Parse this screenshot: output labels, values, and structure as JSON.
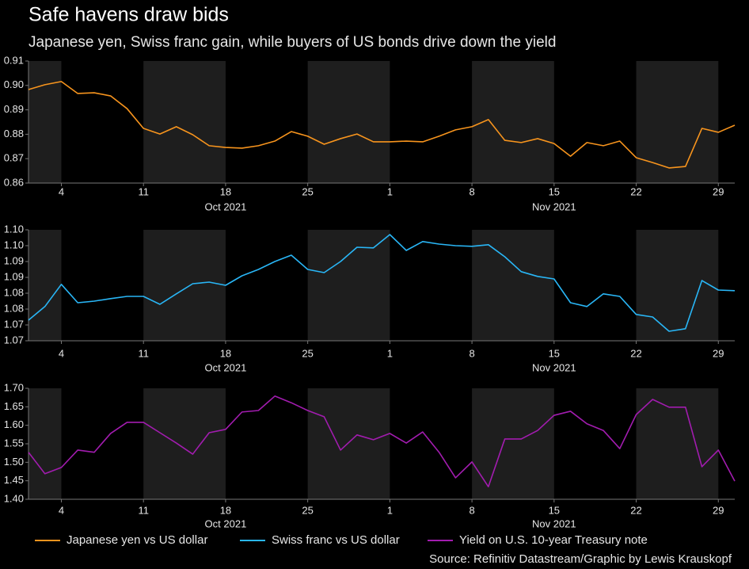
{
  "title": "Safe havens draw bids",
  "subtitle": "Japanese yen, Swiss franc gain, while buyers of US bonds drive down the yield",
  "source": "Source: Refinitiv Datastream/Graphic by Lewis Krauskopf",
  "chart_data": [
    {
      "type": "line",
      "x": [
        "2021-09-30",
        "2021-10-01",
        "2021-10-04",
        "2021-10-05",
        "2021-10-06",
        "2021-10-07",
        "2021-10-08",
        "2021-10-11",
        "2021-10-12",
        "2021-10-13",
        "2021-10-14",
        "2021-10-15",
        "2021-10-18",
        "2021-10-19",
        "2021-10-20",
        "2021-10-21",
        "2021-10-22",
        "2021-10-25",
        "2021-10-26",
        "2021-10-27",
        "2021-10-28",
        "2021-10-29",
        "2021-11-01",
        "2021-11-02",
        "2021-11-03",
        "2021-11-04",
        "2021-11-05",
        "2021-11-08",
        "2021-11-09",
        "2021-11-10",
        "2021-11-11",
        "2021-11-12",
        "2021-11-15",
        "2021-11-16",
        "2021-11-17",
        "2021-11-18",
        "2021-11-19",
        "2021-11-22",
        "2021-11-23",
        "2021-11-24",
        "2021-11-25",
        "2021-11-26",
        "2021-11-29",
        "2021-11-30"
      ],
      "xlim": [
        "2021-09-30",
        "2021-11-30"
      ],
      "xticks": [
        {
          "value": "2021-10-04",
          "label": "4"
        },
        {
          "value": "2021-10-11",
          "label": "11"
        },
        {
          "value": "2021-10-18",
          "label": "18"
        },
        {
          "value": "2021-10-25",
          "label": "25"
        },
        {
          "value": "2021-11-01",
          "label": "1"
        },
        {
          "value": "2021-11-08",
          "label": "8"
        },
        {
          "value": "2021-11-15",
          "label": "15"
        },
        {
          "value": "2021-11-22",
          "label": "22"
        },
        {
          "value": "2021-11-29",
          "label": "29"
        }
      ],
      "x_group_labels": [
        {
          "value": "2021-10-18",
          "label": "Oct 2021"
        },
        {
          "value": "2021-11-15",
          "label": "Nov 2021"
        }
      ],
      "ylim": [
        0.86,
        0.91
      ],
      "yticks": [
        0.86,
        0.87,
        0.88,
        0.89,
        {
          "value": 0.9,
          "label": "0.90"
        },
        0.91
      ],
      "series": [
        {
          "name": "Japanese yen vs US dollar",
          "color": "#f7941d",
          "values": [
            0.8983,
            0.9003,
            0.9016,
            0.8967,
            0.897,
            0.8957,
            0.8905,
            0.8824,
            0.8801,
            0.8831,
            0.8798,
            0.8753,
            0.8746,
            0.8743,
            0.8753,
            0.8772,
            0.8811,
            0.8792,
            0.8759,
            0.8782,
            0.8801,
            0.8769,
            0.8769,
            0.8772,
            0.8769,
            0.8792,
            0.8818,
            0.8831,
            0.886,
            0.8775,
            0.8766,
            0.8782,
            0.8762,
            0.871,
            0.8766,
            0.8753,
            0.8772,
            0.8704,
            0.8684,
            0.8662,
            0.8668,
            0.8824,
            0.8808,
            0.8837
          ]
        }
      ]
    },
    {
      "type": "line",
      "x": [
        "2021-09-30",
        "2021-10-01",
        "2021-10-04",
        "2021-10-05",
        "2021-10-06",
        "2021-10-07",
        "2021-10-08",
        "2021-10-11",
        "2021-10-12",
        "2021-10-13",
        "2021-10-14",
        "2021-10-15",
        "2021-10-18",
        "2021-10-19",
        "2021-10-20",
        "2021-10-21",
        "2021-10-22",
        "2021-10-25",
        "2021-10-26",
        "2021-10-27",
        "2021-10-28",
        "2021-10-29",
        "2021-11-01",
        "2021-11-02",
        "2021-11-03",
        "2021-11-04",
        "2021-11-05",
        "2021-11-08",
        "2021-11-09",
        "2021-11-10",
        "2021-11-11",
        "2021-11-12",
        "2021-11-15",
        "2021-11-16",
        "2021-11-17",
        "2021-11-18",
        "2021-11-19",
        "2021-11-22",
        "2021-11-23",
        "2021-11-24",
        "2021-11-25",
        "2021-11-26",
        "2021-11-29",
        "2021-11-30"
      ],
      "xlim": [
        "2021-09-30",
        "2021-11-30"
      ],
      "xticks": [
        {
          "value": "2021-10-04",
          "label": "4"
        },
        {
          "value": "2021-10-11",
          "label": "11"
        },
        {
          "value": "2021-10-18",
          "label": "18"
        },
        {
          "value": "2021-10-25",
          "label": "25"
        },
        {
          "value": "2021-11-01",
          "label": "1"
        },
        {
          "value": "2021-11-08",
          "label": "8"
        },
        {
          "value": "2021-11-15",
          "label": "15"
        },
        {
          "value": "2021-11-22",
          "label": "22"
        },
        {
          "value": "2021-11-29",
          "label": "29"
        }
      ],
      "x_group_labels": [
        {
          "value": "2021-10-18",
          "label": "Oct 2021"
        },
        {
          "value": "2021-11-15",
          "label": "Nov 2021"
        }
      ],
      "ylim": [
        1.065,
        1.1
      ],
      "yticks": [
        {
          "value": 1.065,
          "label": "1.07"
        },
        1.07,
        {
          "value": 1.075,
          "label": "1.08"
        },
        1.08,
        {
          "value": 1.085,
          "label": "1.09"
        },
        1.09,
        {
          "value": 1.095,
          "label": "1.10"
        },
        {
          "value": 1.1,
          "label": "1.10"
        }
      ],
      "series": [
        {
          "name": "Swiss franc vs US dollar",
          "color": "#29b6f6",
          "values": [
            1.0715,
            1.0758,
            1.0828,
            1.077,
            1.0775,
            1.0783,
            1.079,
            1.079,
            1.0765,
            1.0798,
            1.083,
            1.0835,
            1.0825,
            1.0855,
            1.0875,
            1.09,
            1.092,
            1.0875,
            1.0865,
            1.09,
            1.0945,
            1.0943,
            1.0985,
            1.0935,
            1.0963,
            1.0955,
            1.095,
            1.0948,
            1.0953,
            1.0915,
            1.0868,
            1.0853,
            1.0845,
            1.077,
            1.0758,
            1.0798,
            1.079,
            1.0733,
            1.0725,
            1.068,
            1.0688,
            1.084,
            1.081,
            1.0808
          ]
        }
      ]
    },
    {
      "type": "line",
      "x": [
        "2021-09-30",
        "2021-10-01",
        "2021-10-04",
        "2021-10-05",
        "2021-10-06",
        "2021-10-07",
        "2021-10-08",
        "2021-10-11",
        "2021-10-12",
        "2021-10-13",
        "2021-10-14",
        "2021-10-15",
        "2021-10-18",
        "2021-10-19",
        "2021-10-20",
        "2021-10-21",
        "2021-10-22",
        "2021-10-25",
        "2021-10-26",
        "2021-10-27",
        "2021-10-28",
        "2021-10-29",
        "2021-11-01",
        "2021-11-02",
        "2021-11-03",
        "2021-11-04",
        "2021-11-05",
        "2021-11-08",
        "2021-11-09",
        "2021-11-10",
        "2021-11-11",
        "2021-11-12",
        "2021-11-15",
        "2021-11-16",
        "2021-11-17",
        "2021-11-18",
        "2021-11-19",
        "2021-11-22",
        "2021-11-23",
        "2021-11-24",
        "2021-11-25",
        "2021-11-26",
        "2021-11-29",
        "2021-11-30"
      ],
      "xlim": [
        "2021-09-30",
        "2021-11-30"
      ],
      "xticks": [
        {
          "value": "2021-10-04",
          "label": "4"
        },
        {
          "value": "2021-10-11",
          "label": "11"
        },
        {
          "value": "2021-10-18",
          "label": "18"
        },
        {
          "value": "2021-10-25",
          "label": "25"
        },
        {
          "value": "2021-11-01",
          "label": "1"
        },
        {
          "value": "2021-11-08",
          "label": "8"
        },
        {
          "value": "2021-11-15",
          "label": "15"
        },
        {
          "value": "2021-11-22",
          "label": "22"
        },
        {
          "value": "2021-11-29",
          "label": "29"
        }
      ],
      "x_group_labels": [
        {
          "value": "2021-10-18",
          "label": "Oct 2021"
        },
        {
          "value": "2021-11-15",
          "label": "Nov 2021"
        }
      ],
      "ylim": [
        1.4,
        1.7
      ],
      "yticks": [
        {
          "value": 1.4,
          "label": "1.40"
        },
        1.45,
        {
          "value": 1.5,
          "label": "1.50"
        },
        1.55,
        {
          "value": 1.6,
          "label": "1.60"
        },
        1.65,
        {
          "value": 1.7,
          "label": "1.70"
        }
      ],
      "series": [
        {
          "name": "Yield on U.S. 10-year Treasury note",
          "color": "#a21caf",
          "values": [
            1.527,
            1.469,
            1.486,
            1.533,
            1.527,
            1.578,
            1.608,
            1.608,
            1.58,
            1.552,
            1.522,
            1.58,
            1.589,
            1.636,
            1.64,
            1.679,
            1.661,
            1.64,
            1.623,
            1.533,
            1.574,
            1.561,
            1.578,
            1.552,
            1.582,
            1.527,
            1.458,
            1.501,
            1.434,
            1.563,
            1.563,
            1.586,
            1.627,
            1.638,
            1.604,
            1.586,
            1.537,
            1.629,
            1.67,
            1.649,
            1.649,
            1.488,
            1.533,
            1.449
          ]
        }
      ]
    }
  ]
}
